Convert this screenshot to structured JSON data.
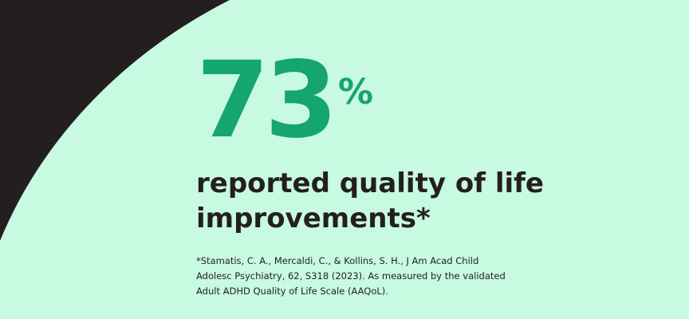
{
  "colors": {
    "background": "#c8f9e1",
    "dark_shape": "#231f20",
    "accent_green": "#15a571",
    "text": "#231f20"
  },
  "stat": {
    "number": "73",
    "percent_symbol": "%"
  },
  "headline": {
    "line1": "reported quality of life",
    "line2": "improvements*"
  },
  "citation": {
    "line1": "*Stamatis, C. A., Mercaldi, C., & Kollins, S. H., J Am Acad Child",
    "line2": "Adolesc Psychiatry, 62, S318 (2023). As measured by the validated",
    "line3": "Adult ADHD Quality of Life Scale (AAQoL)."
  }
}
